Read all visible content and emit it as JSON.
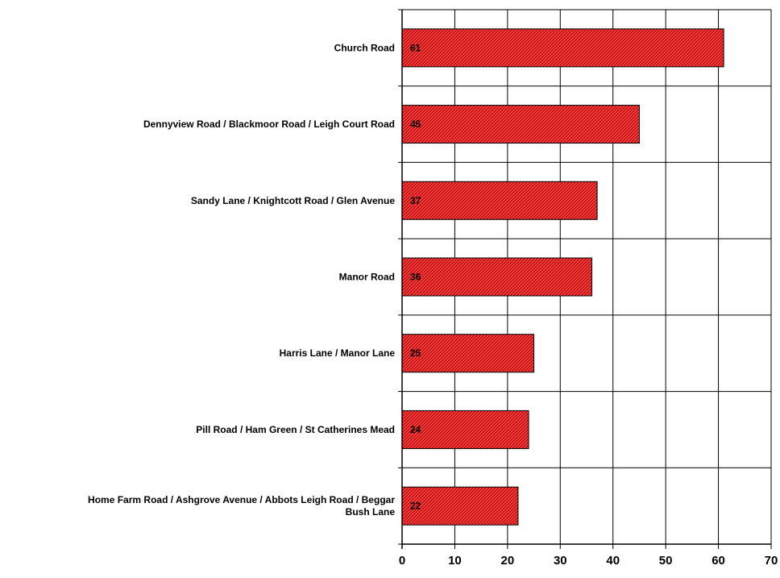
{
  "chart_data": {
    "type": "bar",
    "orientation": "horizontal",
    "categories": [
      "Church Road",
      "Dennyview Road / Blackmoor Road / Leigh Court Road",
      "Sandy Lane / Knightcott Road / Glen Avenue",
      "Manor Road",
      "Harris Lane / Manor Lane",
      "Pill Road / Ham Green / St Catherines Mead",
      "Home Farm Road / Ashgrove Avenue / Abbots Leigh Road / Beggar Bush Lane"
    ],
    "category_label_lines": [
      [
        "Church Road"
      ],
      [
        "Dennyview Road / Blackmoor Road / Leigh Court Road"
      ],
      [
        "Sandy Lane / Knightcott Road / Glen Avenue"
      ],
      [
        "Manor Road"
      ],
      [
        "Harris Lane / Manor Lane"
      ],
      [
        "Pill Road / Ham Green / St Catherines Mead"
      ],
      [
        "Home Farm Road / Ashgrove Avenue / Abbots Leigh Road / Beggar",
        "Bush Lane"
      ]
    ],
    "values": [
      61,
      45,
      37,
      36,
      25,
      24,
      22
    ],
    "data_labels": [
      "61",
      "45",
      "37",
      "36",
      "25",
      "24",
      "22"
    ],
    "xlim": [
      0,
      70
    ],
    "xticks": [
      0,
      10,
      20,
      30,
      40,
      50,
      60,
      70
    ],
    "xtick_labels": [
      "0",
      "10",
      "20",
      "30",
      "40",
      "50",
      "60",
      "70"
    ],
    "grid": true,
    "legend": "none",
    "title": "",
    "xlabel": "",
    "ylabel": "",
    "colors": {
      "bar_fill": "#ff3b3b",
      "bar_hatch": "#8a0000",
      "bar_border": "#000000",
      "grid": "#000000",
      "background": "#ffffff"
    }
  }
}
